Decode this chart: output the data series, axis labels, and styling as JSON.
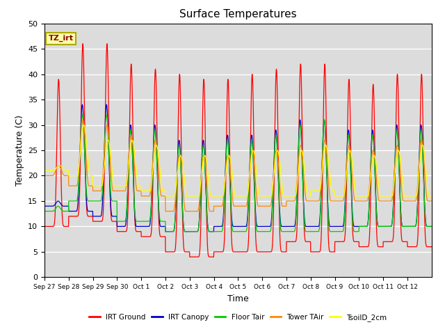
{
  "title": "Surface Temperatures",
  "xlabel": "Time",
  "ylabel": "Temperature (C)",
  "ylim": [
    0,
    50
  ],
  "yticks": [
    0,
    5,
    10,
    15,
    20,
    25,
    30,
    35,
    40,
    45,
    50
  ],
  "tz_label": "TZ_irt",
  "legend_labels": [
    "IRT Ground",
    "IRT Canopy",
    "Floor Tair",
    "Tower TAir",
    "TsoilD_2cm"
  ],
  "legend_colors": [
    "#ff0000",
    "#0000cc",
    "#00cc00",
    "#ff8800",
    "#ffff00"
  ],
  "bg_color": "#dcdcdc",
  "xtick_labels": [
    "Sep 27",
    "Sep 28",
    "Sep 29",
    "Sep 30",
    "Oct 1",
    "Oct 2",
    "Oct 3",
    "Oct 4",
    "Oct 5",
    "Oct 6",
    "Oct 7",
    "Oct 8",
    "Oct 9",
    "Oct 10",
    "Oct 11",
    "Oct 12"
  ],
  "irt_ground_peaks": [
    39,
    46,
    46,
    42,
    41,
    40,
    39,
    39,
    40,
    41,
    42,
    42,
    39,
    38,
    40,
    40
  ],
  "irt_ground_valleys": [
    10,
    12,
    11,
    9,
    8,
    5,
    4,
    5,
    5,
    5,
    7,
    5,
    7,
    6,
    7,
    6
  ],
  "irt_canopy_peaks": [
    15,
    34,
    34,
    30,
    30,
    27,
    27,
    28,
    28,
    29,
    31,
    31,
    29,
    29,
    30,
    30
  ],
  "irt_canopy_valleys": [
    14,
    13,
    12,
    10,
    10,
    9,
    9,
    10,
    10,
    10,
    10,
    10,
    10,
    10,
    10,
    10
  ],
  "floor_tair_peaks": [
    14,
    32,
    32,
    29,
    29,
    26,
    26,
    27,
    27,
    28,
    30,
    31,
    28,
    28,
    29,
    29
  ],
  "floor_tair_valleys": [
    13,
    15,
    15,
    11,
    11,
    9,
    9,
    9,
    9,
    9,
    9,
    9,
    9,
    10,
    10,
    10
  ],
  "tower_tair_peaks": [
    22,
    31,
    30,
    28,
    27,
    24,
    24,
    24,
    25,
    25,
    26,
    27,
    26,
    25,
    26,
    27
  ],
  "tower_tair_valleys": [
    20,
    18,
    17,
    17,
    16,
    13,
    13,
    14,
    14,
    14,
    15,
    15,
    15,
    15,
    15,
    15
  ],
  "tsoil_peaks": [
    22,
    30,
    27,
    27,
    26,
    24,
    24,
    24,
    25,
    25,
    25,
    26,
    25,
    24,
    25,
    26
  ],
  "tsoil_valleys": [
    21,
    20,
    18,
    18,
    17,
    16,
    16,
    16,
    16,
    16,
    16,
    17,
    16,
    16,
    16,
    16
  ]
}
